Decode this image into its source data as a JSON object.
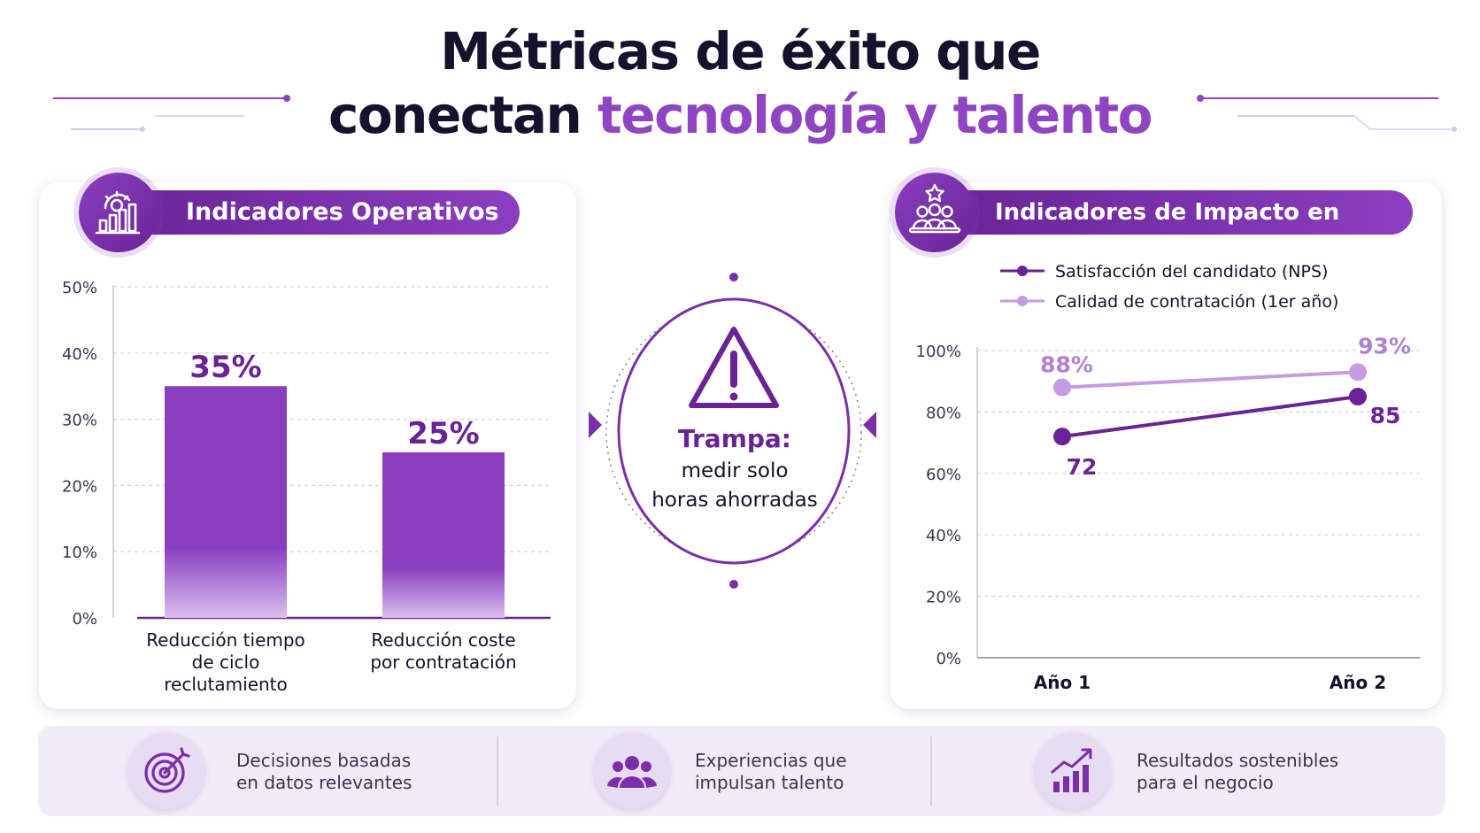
{
  "header": {
    "title_line1": "Métricas de éxito que",
    "title_line2_plain": "conectan ",
    "title_line2_highlight": "tecnología y talento"
  },
  "colors": {
    "dark_purple": "#6a2396",
    "purple": "#8a3fc0",
    "light_purple": "#c59be3",
    "title_text": "#15122e",
    "strip_bg": "#f2ecf8"
  },
  "operational": {
    "title": "Indicadores Operativos",
    "icon": "gear-chart-icon"
  },
  "talent": {
    "title": "Indicadores de Impacto en Talento",
    "icon": "people-star-icon"
  },
  "warning": {
    "icon": "warning-triangle-icon",
    "label": "Trampa:",
    "text_line1": "medir solo",
    "text_line2": "horas ahorradas"
  },
  "features": [
    {
      "icon": "target-icon",
      "text": "Decisiones basadas\nen datos relevantes"
    },
    {
      "icon": "team-icon",
      "text": "Experiencias que\nimpulsan talento"
    },
    {
      "icon": "growth-chart-icon",
      "text": "Resultados sostenibles\npara el negocio"
    }
  ],
  "chart_data": [
    {
      "type": "bar",
      "title": "Indicadores Operativos",
      "categories": [
        "Reducción tiempo\nde ciclo\nreclutamiento",
        "Reducción coste\npor contratación"
      ],
      "values": [
        35,
        25
      ],
      "value_labels": [
        "35%",
        "25%"
      ],
      "ylim": [
        0,
        50
      ],
      "yticks": [
        0,
        10,
        20,
        30,
        40,
        50
      ],
      "ytick_labels": [
        "0%",
        "10%",
        "20%",
        "30%",
        "40%",
        "50%"
      ],
      "grid": true,
      "color": "#8a3fc0"
    },
    {
      "type": "line",
      "title": "Indicadores de Impacto en Talento",
      "categories": [
        "Año 1",
        "Año 2"
      ],
      "series": [
        {
          "name": "Satisfacción del candidato (NPS)",
          "values": [
            72,
            85
          ],
          "labels": [
            "72",
            "85"
          ],
          "color": "#6a2396"
        },
        {
          "name": "Calidad de contratación (1er año)",
          "values": [
            88,
            93
          ],
          "labels": [
            "88%",
            "93%"
          ],
          "color": "#c59be3"
        }
      ],
      "ylim": [
        0,
        100
      ],
      "yticks": [
        0,
        20,
        40,
        60,
        80,
        100
      ],
      "ytick_labels": [
        "0%",
        "20%",
        "40%",
        "60%",
        "80%",
        "100%"
      ],
      "legend": "top-left",
      "grid": true
    }
  ]
}
